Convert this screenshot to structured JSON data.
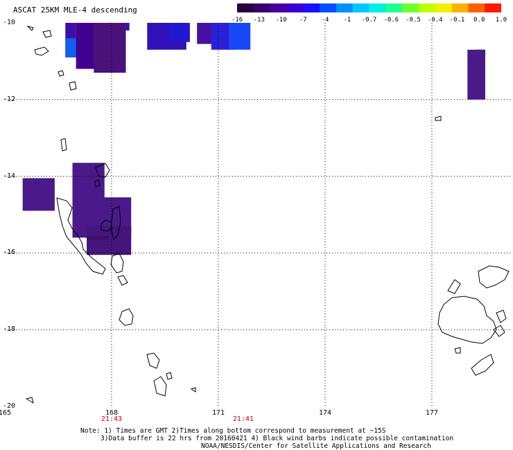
{
  "title": "ASCAT 25KM MLE-4 descending",
  "colorbar": {
    "ticks": [
      "-16",
      "-13",
      "-10",
      "-7",
      "-4",
      "-1",
      "-0.7",
      "-0.6",
      "-0.5",
      "-0.4",
      "-0.1",
      "0.0",
      "1.0"
    ],
    "colors": [
      "#2a0040",
      "#3a0070",
      "#4400a0",
      "#3a00d0",
      "#1a10ff",
      "#0050ff",
      "#0090ff",
      "#00c8ff",
      "#00f0e0",
      "#20ff90",
      "#70ff30",
      "#c0ff00",
      "#f0f000",
      "#ffb000",
      "#ff6000",
      "#ff1800"
    ]
  },
  "map": {
    "lon_labels": [
      "165",
      "168",
      "171",
      "174",
      "177"
    ],
    "lat_labels": [
      "-10",
      "-12",
      "-14",
      "-16",
      "-18",
      "-20"
    ],
    "time_labels": [
      "21:43",
      "21:41"
    ],
    "lon_range": [
      165,
      178.5
    ],
    "lat_range": [
      -20,
      -10
    ],
    "swath_cells": [
      {
        "lon0": 166.7,
        "lon1": 167.0,
        "lat0": -10.0,
        "lat1": -10.9,
        "color": "#3a10a8"
      },
      {
        "lon0": 166.7,
        "lon1": 167.1,
        "lat0": -10.4,
        "lat1": -10.9,
        "color": "#1060f0"
      },
      {
        "lon0": 167.0,
        "lon1": 168.4,
        "lat0": -10.0,
        "lat1": -11.2,
        "color": "#420090"
      },
      {
        "lon0": 167.5,
        "lon1": 168.4,
        "lat0": -10.0,
        "lat1": -11.3,
        "color": "#48127a"
      },
      {
        "lon0": 168.4,
        "lon1": 168.5,
        "lat0": -10.0,
        "lat1": -10.2,
        "color": "#3a10c0"
      },
      {
        "lon0": 169.0,
        "lon1": 170.1,
        "lat0": -10.0,
        "lat1": -10.7,
        "color": "#3010b8"
      },
      {
        "lon0": 169.6,
        "lon1": 170.2,
        "lat0": -10.0,
        "lat1": -10.5,
        "color": "#2218d0"
      },
      {
        "lon0": 170.4,
        "lon1": 171.1,
        "lat0": -10.0,
        "lat1": -10.55,
        "color": "#4810a0"
      },
      {
        "lon0": 170.8,
        "lon1": 171.5,
        "lat0": -10.0,
        "lat1": -10.7,
        "color": "#2a20d8"
      },
      {
        "lon0": 171.3,
        "lon1": 171.9,
        "lat0": -10.0,
        "lat1": -10.7,
        "color": "#1848f8"
      },
      {
        "lon0": 178.0,
        "lon1": 178.5,
        "lat0": -10.7,
        "lat1": -12.0,
        "color": "#4a1a8a"
      },
      {
        "lon0": 178.2,
        "lon1": 178.5,
        "lat0": -10.7,
        "lat1": -10.85,
        "color": "#4a1a8a"
      },
      {
        "lon0": 165.5,
        "lon1": 166.4,
        "lat0": -14.05,
        "lat1": -14.9,
        "color": "#4a1a8a"
      },
      {
        "lon0": 166.9,
        "lon1": 167.8,
        "lat0": -13.65,
        "lat1": -15.3,
        "color": "#4a1a8a"
      },
      {
        "lon0": 166.9,
        "lon1": 168.55,
        "lat0": -14.55,
        "lat1": -15.6,
        "color": "#4a1a8a"
      },
      {
        "lon0": 167.3,
        "lon1": 168.55,
        "lat0": -15.3,
        "lat1": -16.05,
        "color": "#44167c"
      },
      {
        "lon0": 167.3,
        "lon1": 167.9,
        "lat0": -15.55,
        "lat1": -15.65,
        "color": "#3a0e6a"
      }
    ]
  },
  "notes": [
    "Note: 1) Times are GMT 2)Times along bottom correspond to measurement at ~15S",
    "3)Data buffer is 22 hrs from 20160421 4) Black wind barbs indicate possible contamination",
    "NOAA/NESDIS/Center for Satellite Applications and Research"
  ]
}
